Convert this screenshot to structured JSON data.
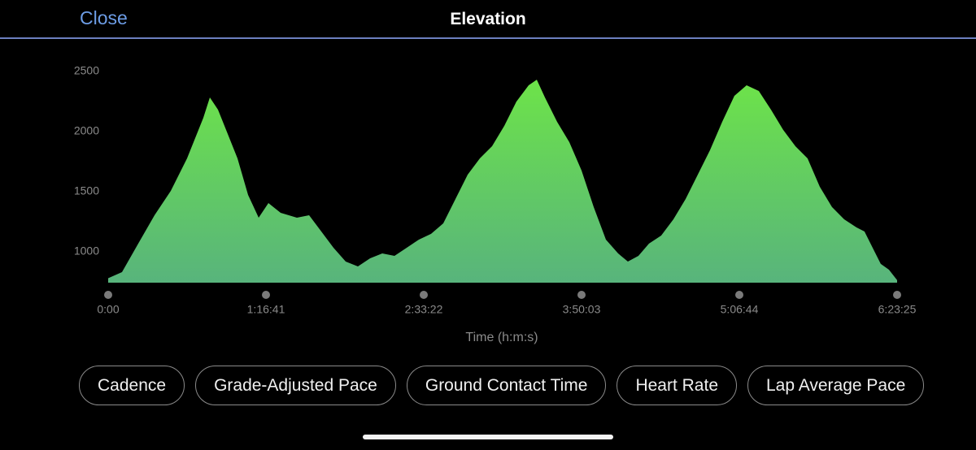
{
  "header": {
    "close": "Close",
    "title": "Elevation"
  },
  "chart_data": {
    "type": "area",
    "color": "#6ee547",
    "x_label": "Time (h:m:s)",
    "x": [
      0,
      403,
      877,
      1352,
      1826,
      2300,
      2775,
      2965,
      3202,
      3487,
      3771,
      4080,
      4388,
      4673,
      5029,
      5503,
      5859,
      6215,
      6570,
      6926,
      7282,
      7638,
      7993,
      8349,
      8705,
      9060,
      9416,
      9771,
      10127,
      10483,
      10838,
      11194,
      11550,
      11905,
      12261,
      12498,
      12736,
      13091,
      13447,
      13803,
      14158,
      14514,
      14870,
      15154,
      15462,
      15770,
      16126,
      16482,
      16838,
      17193,
      17549,
      17905,
      18260,
      18616,
      18972,
      19327,
      19683,
      20039,
      20394,
      20750,
      21106,
      21461,
      21817,
      22054,
      22291,
      22528,
      22766,
      23005
    ],
    "values": [
      780,
      831,
      1068,
      1304,
      1507,
      1777,
      2115,
      2284,
      2182,
      1980,
      1777,
      1473,
      1284,
      1405,
      1324,
      1284,
      1304,
      1169,
      1034,
      919,
      878,
      946,
      986,
      966,
      1034,
      1101,
      1149,
      1236,
      1439,
      1642,
      1777,
      1878,
      2047,
      2250,
      2385,
      2432,
      2284,
      2081,
      1912,
      1676,
      1372,
      1101,
      986,
      919,
      966,
      1068,
      1135,
      1270,
      1439,
      1642,
      1845,
      2081,
      2297,
      2385,
      2338,
      2182,
      2014,
      1878,
      1777,
      1541,
      1372,
      1270,
      1203,
      1169,
      1034,
      899,
      851,
      764
    ],
    "xlim": [
      0,
      23005
    ],
    "xticks": [
      {
        "value": 0,
        "label": "0:00"
      },
      {
        "value": 4601,
        "label": "1:16:41"
      },
      {
        "value": 9202,
        "label": "2:33:22"
      },
      {
        "value": 13803,
        "label": "3:50:03"
      },
      {
        "value": 18404,
        "label": "5:06:44"
      },
      {
        "value": 23005,
        "label": "6:23:25"
      }
    ],
    "ylim": [
      743,
      2500
    ],
    "yticks": [
      1000,
      1500,
      2000,
      2500
    ]
  },
  "buttons": [
    "Cadence",
    "Grade-Adjusted Pace",
    "Ground Contact Time",
    "Heart Rate",
    "Lap Average Pace"
  ]
}
